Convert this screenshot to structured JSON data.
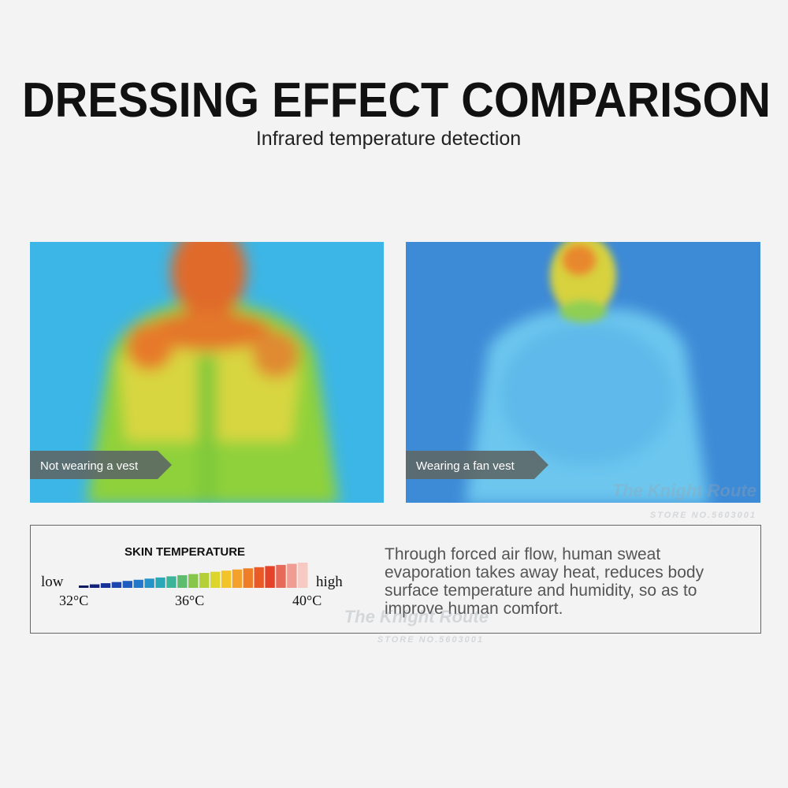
{
  "header": {
    "title": "DRESSING EFFECT COMPARISON",
    "subtitle": "Infrared temperature detection"
  },
  "panels": [
    {
      "label": "Not wearing a vest"
    },
    {
      "label": "Wearing a fan vest"
    }
  ],
  "legend": {
    "heading": "SKIN TEMPERATURE",
    "low": "low",
    "high": "high",
    "ticks": [
      "32°C",
      "36°C",
      "40°C"
    ]
  },
  "description": {
    "lines": [
      "Through forced air flow, human sweat",
      "evaporation takes away heat, reduces body",
      "surface temperature and humidity, so as to",
      "improve human comfort."
    ]
  },
  "watermarks": [
    {
      "brand": "The Knight Route",
      "store": "STORE NO.5603001"
    },
    {
      "brand": "The Knight Route",
      "store": "STORE NO.5603001"
    }
  ]
}
